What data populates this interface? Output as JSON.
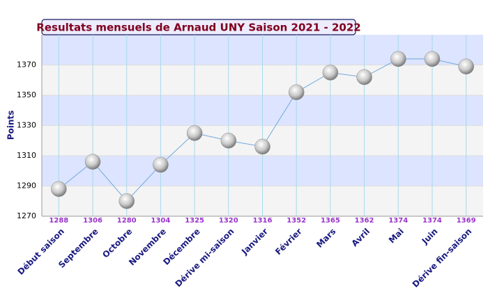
{
  "chart_data": {
    "type": "line",
    "title": "Resultats mensuels de Arnaud UNY Saison 2021 - 2022",
    "y_label": "Points",
    "categories": [
      "Début saison",
      "Septembre",
      "Octobre",
      "Novembre",
      "Décembre",
      "Dérive mi-saison",
      "Janvier",
      "Février",
      "Mars",
      "Avril",
      "Mai",
      "Juin",
      "Dérive fin-saison"
    ],
    "values": [
      1288,
      1306,
      1280,
      1304,
      1325,
      1320,
      1316,
      1352,
      1365,
      1362,
      1374,
      1374,
      1369
    ],
    "color": "#6fa8dc",
    "ylim": [
      1270,
      1390
    ],
    "yticks": [
      1270,
      1290,
      1310,
      1330,
      1350,
      1370
    ],
    "grid": true
  }
}
